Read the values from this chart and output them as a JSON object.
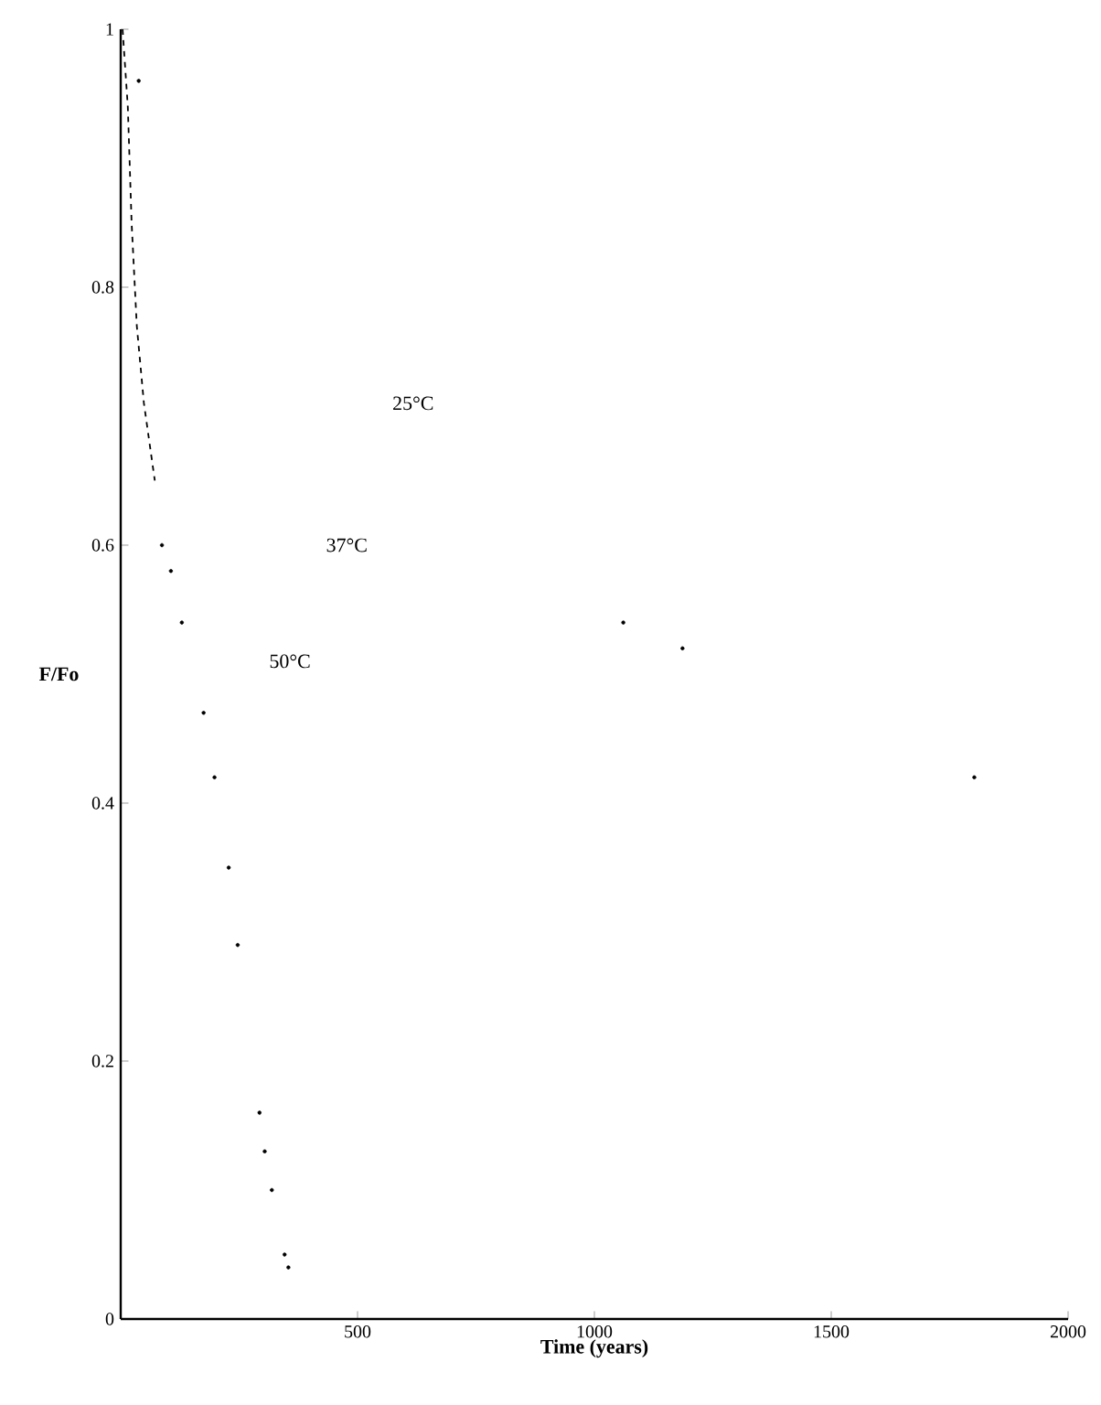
{
  "chart_data": {
    "type": "line",
    "xlabel": "Time (years)",
    "ylabel": "F/Fo",
    "xlim": [
      0,
      2000
    ],
    "ylim": [
      0,
      1
    ],
    "xticks": [
      500,
      1000,
      1500,
      2000
    ],
    "yticks": [
      0,
      0.2,
      0.4,
      0.6,
      0.8,
      1
    ],
    "annotations": [
      "25°C",
      "37°C",
      "50°C"
    ],
    "line_style": "dashed",
    "series": [
      {
        "color": "#000000",
        "x": [
          4,
          15,
          23,
          34,
          49,
          72
        ],
        "values": [
          1.0,
          0.94,
          0.85,
          0.77,
          0.71,
          0.65
        ]
      },
      {
        "type": "scatter",
        "color": "#000000",
        "x": [
          38,
          87,
          106,
          129,
          175,
          198,
          228,
          247,
          293,
          304,
          319,
          346,
          354
        ],
        "values": [
          0.96,
          0.6,
          0.58,
          0.54,
          0.47,
          0.42,
          0.35,
          0.29,
          0.16,
          0.13,
          0.1,
          0.05,
          0.04
        ]
      },
      {
        "type": "scatter",
        "color": "#000000",
        "x": [
          1061,
          1186,
          1802
        ],
        "values": [
          0.54,
          0.52,
          0.42
        ]
      }
    ]
  }
}
